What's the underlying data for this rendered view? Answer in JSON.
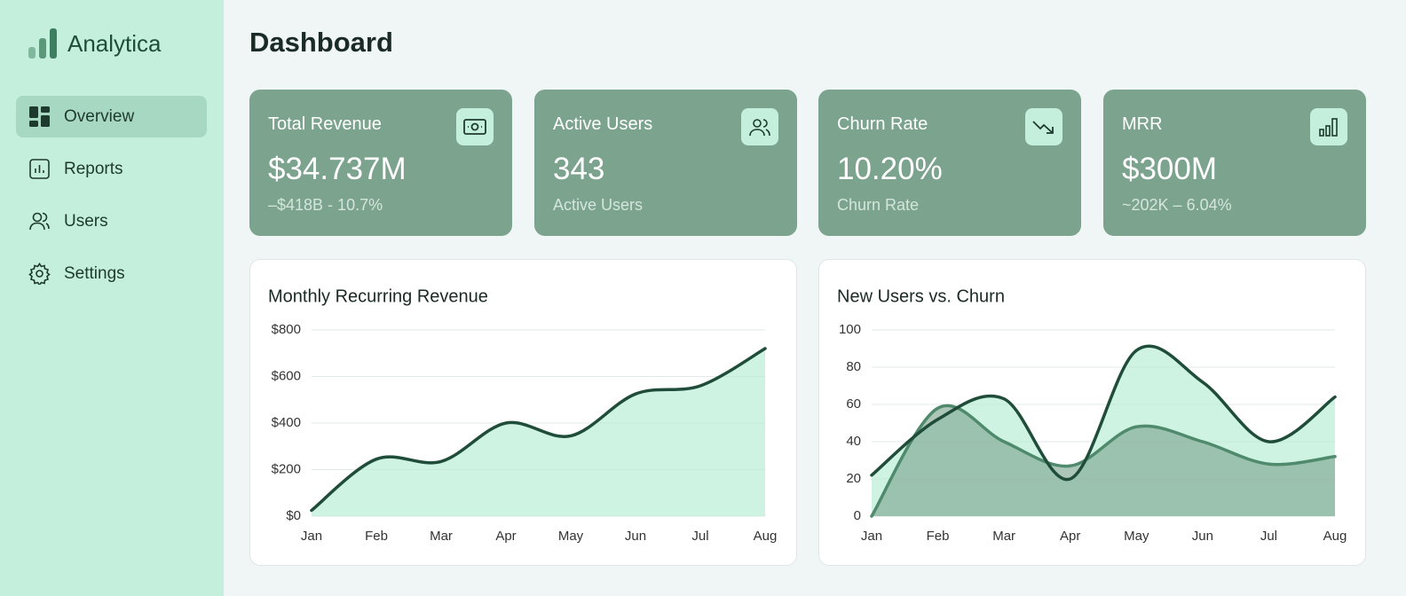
{
  "sidebar": {
    "brand": "Analytica",
    "nav": [
      "Overview",
      "Reports",
      "Users",
      "Settings"
    ]
  },
  "header": {
    "title": "Dashboard"
  },
  "kpis": [
    {
      "title": "Total Revenue",
      "value": "$34.737M",
      "subtitle": "–$418B - 10.7%"
    },
    {
      "title": "Active Users",
      "value": "343",
      "subtitle": "Active Users"
    },
    {
      "title": "Churn Rate",
      "value": "10.20%",
      "subtitle": "Churn Rate"
    },
    {
      "title": "MRR",
      "value": "$300M",
      "subtitle": "~202K – 6.04%"
    }
  ],
  "chart_data": [
    {
      "type": "area",
      "title": "Monthly Recurring Revenue",
      "categories": [
        "Jan",
        "Feb",
        "Mar",
        "Apr",
        "May",
        "Jun",
        "Jul",
        "Aug"
      ],
      "series": [
        {
          "color": "#1f4d3a",
          "fill": "#b5ecd3",
          "values": [
            25,
            245,
            235,
            400,
            345,
            525,
            560,
            720
          ]
        }
      ],
      "ylim": [
        0,
        800
      ],
      "yticks": [
        {
          "value": 0,
          "label": "$0"
        },
        {
          "value": 200,
          "label": "$200"
        },
        {
          "value": 400,
          "label": "$400"
        },
        {
          "value": 600,
          "label": "$600"
        },
        {
          "value": 800,
          "label": "$800"
        }
      ],
      "grid": true
    },
    {
      "type": "area",
      "title": "New Users vs. Churn",
      "categories": [
        "Jan",
        "Feb",
        "Mar",
        "Apr",
        "May",
        "Jun",
        "Jul",
        "Aug"
      ],
      "series": [
        {
          "color": "#1f4d3a",
          "fill": "#b5ecd3",
          "values": [
            22,
            52,
            63,
            20,
            89,
            72,
            40,
            64
          ]
        },
        {
          "color": "#4f8a6c",
          "fill": "#7fa892",
          "values": [
            0,
            58,
            40,
            27,
            48,
            40,
            28,
            32
          ]
        }
      ],
      "ylim": [
        0,
        100
      ],
      "yticks": [
        0,
        20,
        40,
        60,
        80,
        100
      ],
      "grid": true
    }
  ]
}
